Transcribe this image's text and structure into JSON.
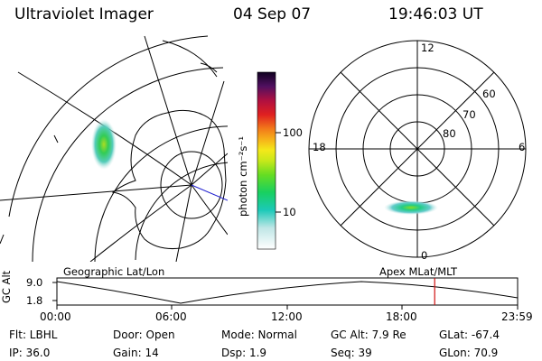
{
  "header": {
    "instrument": "Ultraviolet Imager",
    "date": "04 Sep 07",
    "time": "19:46:03 UT"
  },
  "colorbar": {
    "label": "photon cm⁻²s⁻¹",
    "ticks": [
      {
        "label": "100",
        "value": 100
      },
      {
        "label": "10",
        "value": 10
      }
    ]
  },
  "polar_plot": {
    "mlt_labels": {
      "top": "12",
      "left": "18",
      "right": "6",
      "bottom": "0"
    },
    "lat_labels": [
      "60",
      "70",
      "80"
    ]
  },
  "panel_labels": {
    "left": "Geographic Lat/Lon",
    "right": "Apex MLat/MLT"
  },
  "timeline": {
    "ylabel": "GC Alt",
    "yticks": [
      "9.0",
      "1.8"
    ],
    "xticks": [
      "00:00",
      "06:00",
      "12:00",
      "18:00",
      "23:59"
    ],
    "current_time_fraction": 0.82
  },
  "info": {
    "filter": "Flt: LBHL",
    "door": "Door: Open",
    "mode": "Mode: Normal",
    "gc_alt": "GC Alt: 7.9 Re",
    "glat": "GLat: -67.4",
    "ip": "IP: 36.0",
    "gain": "Gain: 14",
    "dsp": "Dsp:    1.9",
    "seq": "Seq: 39",
    "glon": "GLon:  70.9"
  },
  "colors": {
    "marker": "#d01010"
  }
}
